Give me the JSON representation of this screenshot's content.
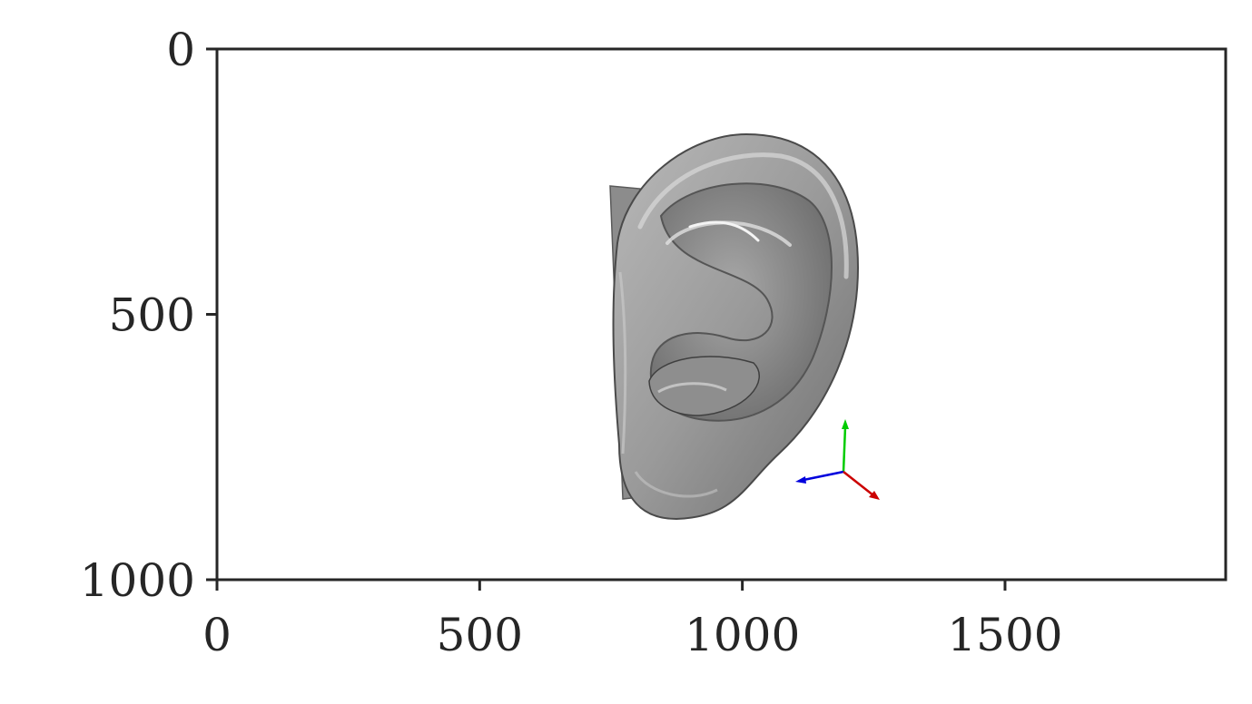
{
  "chart_data": {
    "type": "image",
    "title": "",
    "xlabel": "",
    "ylabel": "",
    "xlim": [
      0,
      1920
    ],
    "ylim": [
      1000,
      0
    ],
    "x_ticks": [
      0,
      500,
      1000,
      1500
    ],
    "y_ticks": [
      0,
      500,
      1000
    ],
    "x_tick_labels": [
      "0",
      "500",
      "1000",
      "1500"
    ],
    "y_tick_labels": [
      "0",
      "500",
      "1000"
    ],
    "grid": false,
    "image_content": {
      "subject": "ear-3d-render",
      "color": "#9a9a9a",
      "axis_gizmo": {
        "x_color": "#cc0000",
        "y_color": "#00cc00",
        "z_color": "#0000dd"
      }
    }
  }
}
